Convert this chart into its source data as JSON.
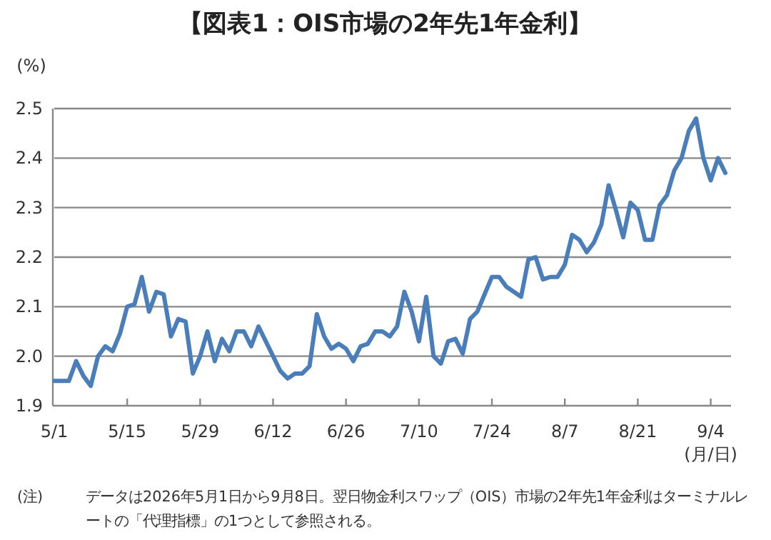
{
  "chart_data": {
    "type": "line",
    "title": "【図表1：OIS市場の2年先1年金利】",
    "ylabel": "(%)",
    "xlabel": "(月/日)",
    "annotations": [
      "(注)",
      "データは2026年5月1日から9月8日。翌日物金利スワップ（OIS）市場の2年先1年金利はターミナルレートの「代理指標」の1つとして参照される。"
    ],
    "categories": [
      "5/1",
      null,
      null,
      null,
      null,
      null,
      null,
      null,
      null,
      null,
      "5/15",
      null,
      null,
      null,
      null,
      null,
      null,
      null,
      null,
      null,
      "5/29",
      null,
      null,
      null,
      null,
      null,
      null,
      null,
      null,
      null,
      "6/12",
      null,
      null,
      null,
      null,
      null,
      null,
      null,
      null,
      null,
      "6/26",
      null,
      null,
      null,
      null,
      null,
      null,
      null,
      null,
      null,
      "7/10",
      null,
      null,
      null,
      null,
      null,
      null,
      null,
      null,
      null,
      "7/24",
      null,
      null,
      null,
      null,
      null,
      null,
      null,
      null,
      null,
      "8/7",
      null,
      null,
      null,
      null,
      null,
      null,
      null,
      null,
      null,
      "8/21",
      null,
      null,
      null,
      null,
      null,
      null,
      null,
      null,
      null,
      "9/4",
      null,
      null
    ],
    "series": [
      {
        "color": "#4a7ebb",
        "values": [
          1.95,
          1.95,
          1.95,
          1.99,
          1.96,
          1.94,
          2.0,
          2.02,
          2.01,
          2.045,
          2.1,
          2.105,
          2.16,
          2.09,
          2.13,
          2.125,
          2.04,
          2.075,
          2.07,
          1.965,
          2.0,
          2.05,
          1.99,
          2.035,
          2.01,
          2.05,
          2.05,
          2.02,
          2.06,
          2.03,
          2.0,
          1.97,
          1.955,
          1.965,
          1.965,
          1.98,
          2.085,
          2.04,
          2.015,
          2.025,
          2.015,
          1.99,
          2.02,
          2.025,
          2.05,
          2.05,
          2.04,
          2.06,
          2.13,
          2.09,
          2.03,
          2.12,
          2.0,
          1.985,
          2.03,
          2.035,
          2.005,
          2.075,
          2.09,
          2.125,
          2.16,
          2.16,
          2.14,
          2.13,
          2.12,
          2.195,
          2.2,
          2.155,
          2.16,
          2.16,
          2.185,
          2.245,
          2.235,
          2.21,
          2.23,
          2.265,
          2.345,
          2.295,
          2.24,
          2.31,
          2.295,
          2.235,
          2.235,
          2.305,
          2.325,
          2.375,
          2.4,
          2.455,
          2.48,
          2.4,
          2.355,
          2.4,
          2.37
        ]
      }
    ],
    "ylim": [
      1.9,
      2.5
    ],
    "yticks": [
      1.9,
      {
        "value": 2,
        "label": "2.0"
      },
      2.1,
      2.2,
      2.3,
      2.4,
      2.5
    ],
    "grid": "y",
    "marker": "none",
    "line_style": "solid"
  }
}
